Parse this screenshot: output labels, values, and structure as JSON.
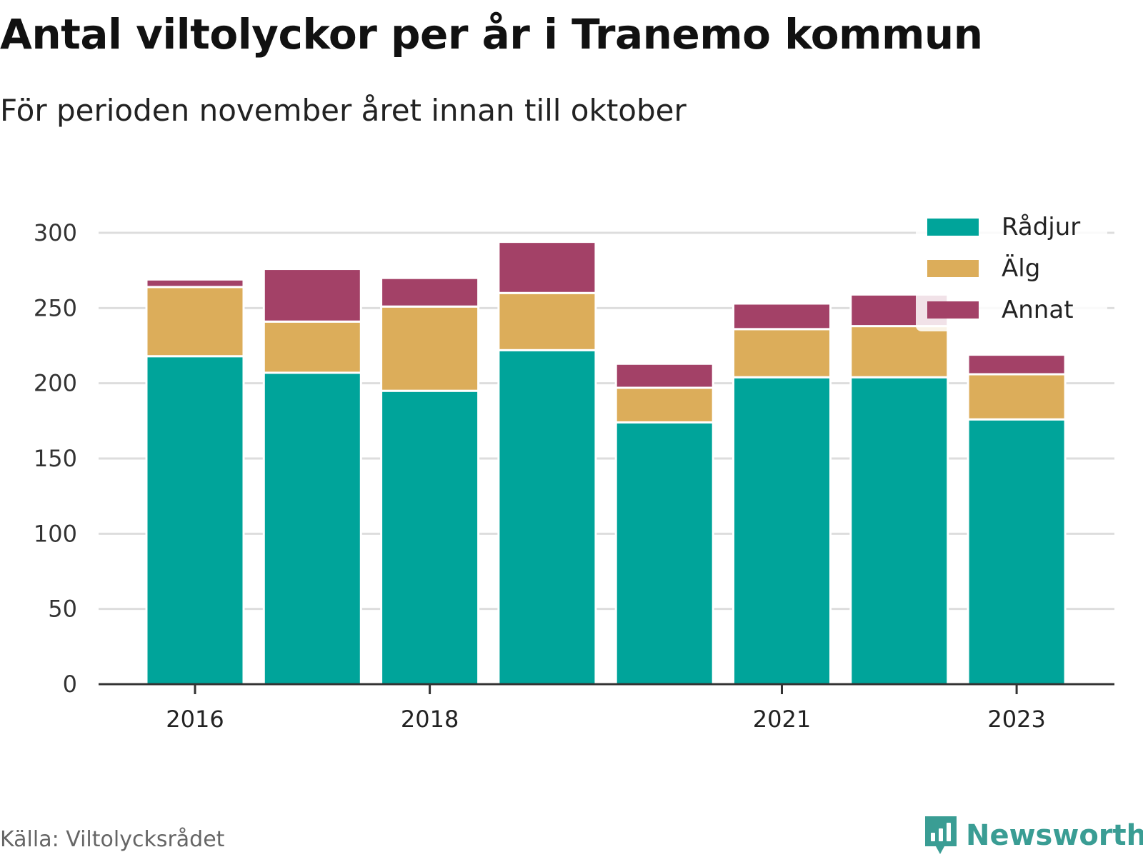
{
  "header": {
    "title": "Antal viltolyckor per år i Tranemo kommun",
    "subtitle": "För perioden november året innan till oktober"
  },
  "footer": {
    "source": "Källa: Viltolycksrådet",
    "brand": "Newsworthy",
    "brand_icon": "newsworthy-logo-icon"
  },
  "colors": {
    "radjur": "#00a49a",
    "alg": "#dcad5a",
    "annat": "#a34167",
    "grid": "#dddddd",
    "axis": "#333333"
  },
  "chart_data": {
    "type": "bar",
    "stacked": true,
    "x": [
      2016,
      2017,
      2018,
      2019,
      2020,
      2021,
      2022,
      2023
    ],
    "x_tick_labels": [
      "2016",
      "2018",
      "2021",
      "2023"
    ],
    "x_tick_values": [
      2016,
      2018,
      2021,
      2023
    ],
    "series": [
      {
        "name": "Rådjur",
        "values": [
          218,
          207,
          195,
          222,
          174,
          204,
          204,
          176
        ]
      },
      {
        "name": "Älg",
        "values": [
          46,
          34,
          56,
          38,
          23,
          32,
          34,
          30
        ]
      },
      {
        "name": "Annat",
        "values": [
          5,
          35,
          19,
          34,
          16,
          17,
          21,
          13
        ]
      }
    ],
    "y_ticks": [
      0,
      50,
      100,
      150,
      200,
      250,
      300
    ],
    "ylim": [
      0,
      300
    ],
    "grid": true,
    "legend_position": "top-right"
  }
}
